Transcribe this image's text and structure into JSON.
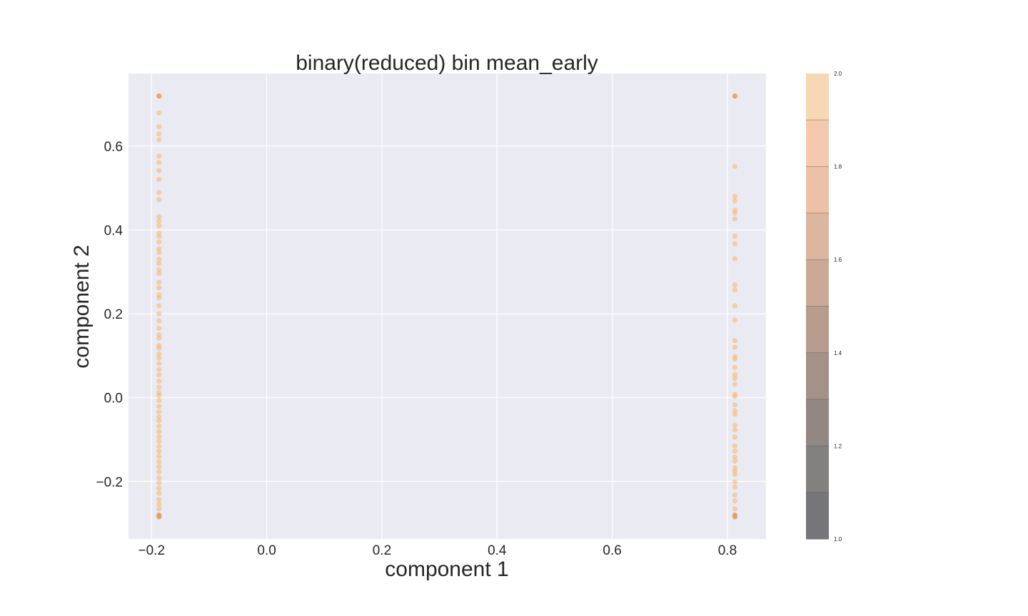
{
  "chart_data": {
    "type": "scatter",
    "title": "binary(reduced) bin mean_early",
    "xlabel": "component 1",
    "ylabel": "component 2",
    "xlim": [
      -0.24,
      0.867
    ],
    "ylim": [
      -0.337,
      0.773
    ],
    "x_ticks": [
      -0.2,
      0.0,
      0.2,
      0.4,
      0.6,
      0.8
    ],
    "x_tick_labels": [
      "−0.2",
      "0.0",
      "0.2",
      "0.4",
      "0.6",
      "0.8"
    ],
    "y_ticks": [
      -0.2,
      0.0,
      0.2,
      0.4,
      0.6
    ],
    "y_tick_labels": [
      "−0.2",
      "0.0",
      "0.2",
      "0.4",
      "0.6"
    ],
    "grid": true,
    "background": "#eaeaf2",
    "point_color": "#f7b46a",
    "point_color_dark": "#e0a060",
    "colorbar": {
      "range": [
        1.0,
        2.0
      ],
      "ticks": [
        1.0,
        1.2,
        1.4,
        1.6,
        1.8,
        2.0
      ],
      "tick_labels": [
        "1.0",
        "1.2",
        "1.4",
        "1.6",
        "1.8",
        "2.0"
      ],
      "colors": [
        "#76757a",
        "#838080",
        "#928783",
        "#a49188",
        "#b79d8f",
        "#caa996",
        "#ddb6a0",
        "#ecc1a5",
        "#f4c9ad",
        "#f6d8b5"
      ]
    },
    "series": [
      {
        "x": -0.187,
        "y": [
          0.719,
          0.679,
          0.646,
          0.629,
          0.615,
          0.576,
          0.561,
          0.541,
          0.52,
          0.489,
          0.472,
          0.431,
          0.421,
          0.41,
          0.392,
          0.384,
          0.371,
          0.355,
          0.346,
          0.33,
          0.32,
          0.305,
          0.296,
          0.275,
          0.262,
          0.245,
          0.238,
          0.219,
          0.2,
          0.183,
          0.165,
          0.15,
          0.142,
          0.124,
          0.118,
          0.104,
          0.094,
          0.081,
          0.067,
          0.054,
          0.039,
          0.025,
          0.012,
          0.005,
          -0.007,
          -0.021,
          -0.034,
          -0.046,
          -0.055,
          -0.068,
          -0.081,
          -0.093,
          -0.104,
          -0.116,
          -0.128,
          -0.14,
          -0.153,
          -0.165,
          -0.177,
          -0.191,
          -0.203,
          -0.216,
          -0.228,
          -0.243,
          -0.254,
          -0.265,
          -0.28,
          -0.284
        ]
      },
      {
        "x": 0.813,
        "y": [
          0.719,
          0.551,
          0.48,
          0.469,
          0.447,
          0.44,
          0.426,
          0.385,
          0.367,
          0.331,
          0.269,
          0.257,
          0.219,
          0.185,
          0.136,
          0.12,
          0.098,
          0.092,
          0.072,
          0.055,
          0.046,
          0.032,
          0.008,
          0.003,
          -0.017,
          -0.031,
          -0.04,
          -0.066,
          -0.077,
          -0.094,
          -0.115,
          -0.127,
          -0.142,
          -0.151,
          -0.167,
          -0.175,
          -0.183,
          -0.201,
          -0.213,
          -0.232,
          -0.246,
          -0.265,
          -0.28,
          -0.284
        ]
      }
    ]
  }
}
